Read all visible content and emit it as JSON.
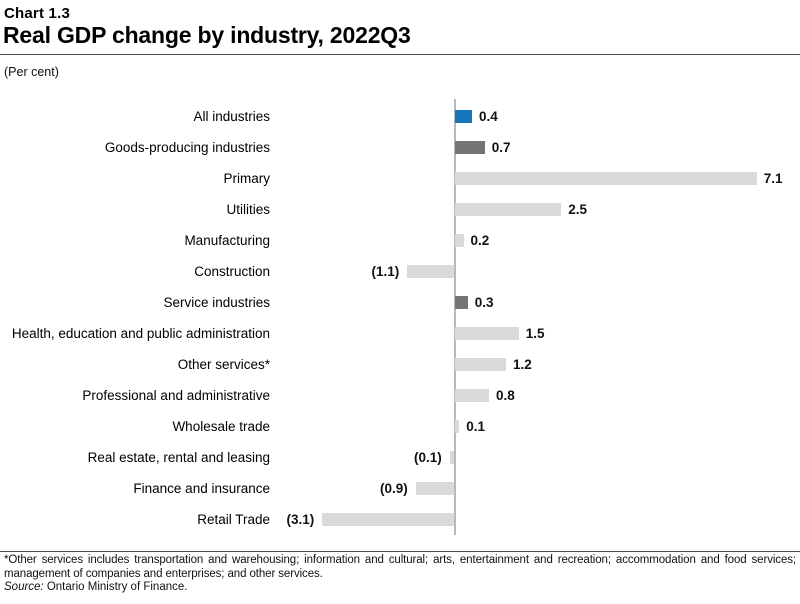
{
  "header": {
    "chart_number": "Chart 1.3",
    "title": "Real GDP change by industry, 2022Q3"
  },
  "chart": {
    "units": "(Per cent)"
  },
  "chart_data": {
    "type": "bar",
    "orientation": "horizontal",
    "title": "Real GDP change by industry, 2022Q3",
    "units_label": "(Per cent)",
    "categories": [
      "All industries",
      "Goods-producing industries",
      "Primary",
      "Utilities",
      "Manufacturing",
      "Construction",
      "Service industries",
      "Health, education and public administration",
      "Other services*",
      "Professional and administrative",
      "Wholesale trade",
      "Real estate, rental and leasing",
      "Finance and insurance",
      "Retail Trade"
    ],
    "values": [
      0.4,
      0.7,
      7.1,
      2.5,
      0.2,
      -1.1,
      0.3,
      1.5,
      1.2,
      0.8,
      0.1,
      -0.1,
      -0.9,
      -3.1
    ],
    "value_labels": [
      "0.4",
      "0.7",
      "7.1",
      "2.5",
      "0.2",
      "(1.1)",
      "0.3",
      "1.5",
      "1.2",
      "0.8",
      "0.1",
      "(0.1)",
      "(0.9)",
      "(3.1)"
    ],
    "bar_color_keys": [
      "highlight",
      "aggregate",
      "default",
      "default",
      "default",
      "default",
      "aggregate",
      "default",
      "default",
      "default",
      "default",
      "default",
      "default",
      "default"
    ],
    "colors": {
      "highlight": "#1477bd",
      "aggregate": "#757575",
      "default": "#d9d9d9",
      "axis": "#b8b8b8"
    },
    "xlim": [
      -3.5,
      7.5
    ],
    "grid": false,
    "legend": false
  },
  "footer": {
    "footnote": "*Other services includes transportation and warehousing; information and cultural; arts, entertainment and recreation; accommodation and food services; management of companies and enterprises; and other services.",
    "source_label": "Source:",
    "source_text": "Ontario Ministry of Finance."
  }
}
